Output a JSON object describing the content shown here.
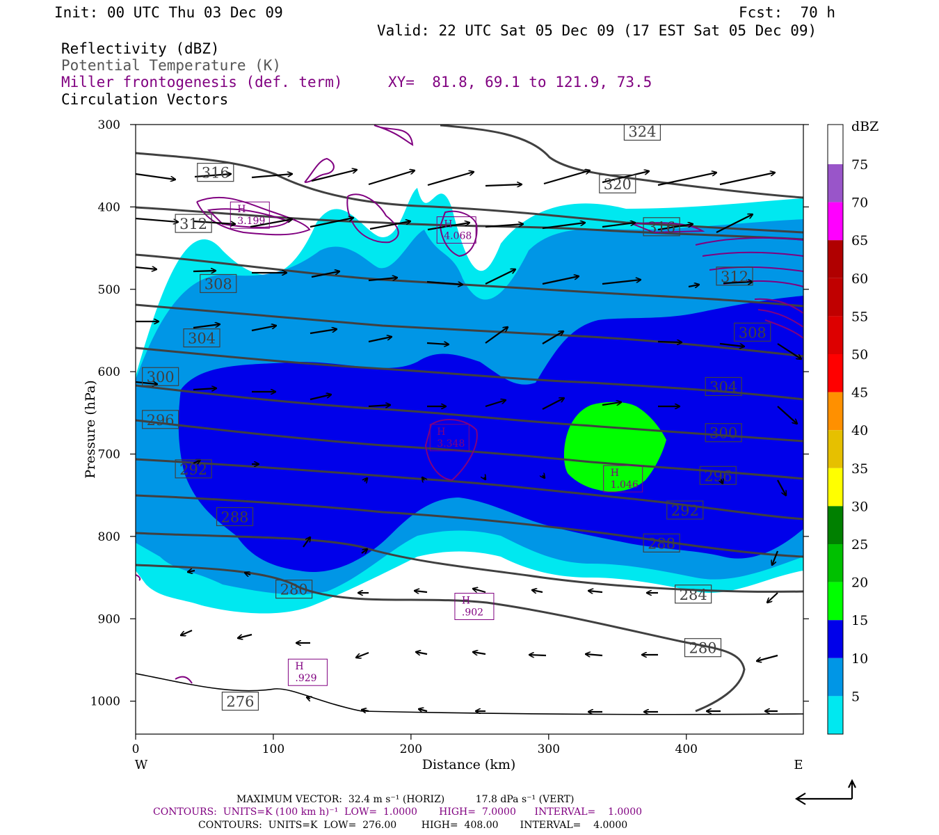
{
  "header": {
    "init": "Init: 00 UTC Thu 03 Dec 09",
    "fcst": "Fcst:  70 h",
    "valid": "Valid: 22 UTC Sat 05 Dec 09 (17 EST Sat 05 Dec 09)",
    "field1": "Reflectivity (dBZ)",
    "field2": "Potential Temperature (K)",
    "field3": "Miller frontogenesis (def. term)",
    "xy": "XY=  81.8, 69.1 to 121.9, 73.5",
    "field4": "Circulation Vectors"
  },
  "footer": {
    "max_vector": "MAXIMUM VECTOR:  32.4 m s⁻¹ (HORIZ)          17.8 dPa s⁻¹ (VERT)",
    "contours1": "CONTOURS:  UNITS=K (100 km h)⁻¹  LOW=  1.0000       HIGH=  7.0000      INTERVAL=    1.0000",
    "contours2": "CONTOURS:  UNITS=K  LOW=  276.00        HIGH=  408.00       INTERVAL=    4.0000"
  },
  "colors": {
    "c5": "#00e8f0",
    "c10": "#0096e6",
    "c15": "#0000ea",
    "c20": "#00ff00",
    "theta": "#404040",
    "fronto": "#800080"
  },
  "colorbar": {
    "title": "dBZ",
    "levels": [
      {
        "label": "5",
        "color": "#00e8f0"
      },
      {
        "label": "10",
        "color": "#0096e6"
      },
      {
        "label": "15",
        "color": "#0000ea"
      },
      {
        "label": "20",
        "color": "#00ff00"
      },
      {
        "label": "25",
        "color": "#00c000"
      },
      {
        "label": "30",
        "color": "#008000"
      },
      {
        "label": "35",
        "color": "#ffff00"
      },
      {
        "label": "40",
        "color": "#e6c000"
      },
      {
        "label": "45",
        "color": "#ff9000"
      },
      {
        "label": "50",
        "color": "#ff0000"
      },
      {
        "label": "55",
        "color": "#dd0000"
      },
      {
        "label": "60",
        "color": "#c00000"
      },
      {
        "label": "65",
        "color": "#b00000"
      },
      {
        "label": "70",
        "color": "#ff00ff"
      },
      {
        "label": "75",
        "color": "#9955c9"
      }
    ]
  },
  "chart_data": {
    "type": "heatmap",
    "title": "",
    "xlabel": "Distance (km)",
    "ylabel": "Pressure (hPa)",
    "xlim": [
      0,
      485
    ],
    "ylim": [
      1040,
      300
    ],
    "x_ticks": [
      "0",
      "100",
      "200",
      "300",
      "400"
    ],
    "y_ticks": [
      "300",
      "400",
      "500",
      "600",
      "700",
      "800",
      "900",
      "1000"
    ],
    "x_end_labels": {
      "left": "W",
      "right": "E"
    },
    "theta_contours": [
      {
        "value": 276,
        "label": "276",
        "x": 76,
        "p": 1000
      },
      {
        "value": 280,
        "label": "280",
        "x": 115,
        "p": 864
      },
      {
        "value": 280,
        "label": "280",
        "x": 412,
        "p": 935
      },
      {
        "value": 284,
        "label": "284",
        "x": 405,
        "p": 870
      },
      {
        "value": 288,
        "label": "288",
        "x": 72,
        "p": 776
      },
      {
        "value": 288,
        "label": "288",
        "x": 382,
        "p": 808
      },
      {
        "value": 292,
        "label": "292",
        "x": 42,
        "p": 718
      },
      {
        "value": 292,
        "label": "292",
        "x": 399,
        "p": 768
      },
      {
        "value": 296,
        "label": "296",
        "x": 18,
        "p": 658
      },
      {
        "value": 296,
        "label": "296",
        "x": 423,
        "p": 726
      },
      {
        "value": 300,
        "label": "300",
        "x": 18,
        "p": 606
      },
      {
        "value": 300,
        "label": "300",
        "x": 427,
        "p": 674
      },
      {
        "value": 304,
        "label": "304",
        "x": 48,
        "p": 559
      },
      {
        "value": 304,
        "label": "304",
        "x": 427,
        "p": 618
      },
      {
        "value": 308,
        "label": "308",
        "x": 60,
        "p": 493
      },
      {
        "value": 308,
        "label": "308",
        "x": 448,
        "p": 552
      },
      {
        "value": 312,
        "label": "312",
        "x": 42,
        "p": 420
      },
      {
        "value": 312,
        "label": "312",
        "x": 435,
        "p": 484
      },
      {
        "value": 316,
        "label": "316",
        "x": 58,
        "p": 358
      },
      {
        "value": 316,
        "label": "316",
        "x": 382,
        "p": 424
      },
      {
        "value": 320,
        "label": "320",
        "x": 36,
        "p": 276
      },
      {
        "value": 320,
        "label": "320",
        "x": 350,
        "p": 372
      },
      {
        "value": 324,
        "label": "324",
        "x": 368,
        "p": 308
      }
    ],
    "frontogenesis_maxima": [
      {
        "label": "H",
        "value": "3.199",
        "x": 83,
        "p": 410
      },
      {
        "label": "H",
        "value": "4.068",
        "x": 233,
        "p": 428
      },
      {
        "label": "H",
        "value": "3.348",
        "x": 228,
        "p": 680
      },
      {
        "label": "H",
        "value": "1.046",
        "x": 354,
        "p": 730
      },
      {
        "label": "H",
        "value": ".902",
        "x": 246,
        "p": 885
      },
      {
        "label": "H",
        "value": ".929",
        "x": 125,
        "p": 965
      }
    ],
    "reflectivity_max_dbz": 20,
    "max_vector_horiz_ms": 32.4,
    "max_vector_vert_dpas": 17.8
  }
}
